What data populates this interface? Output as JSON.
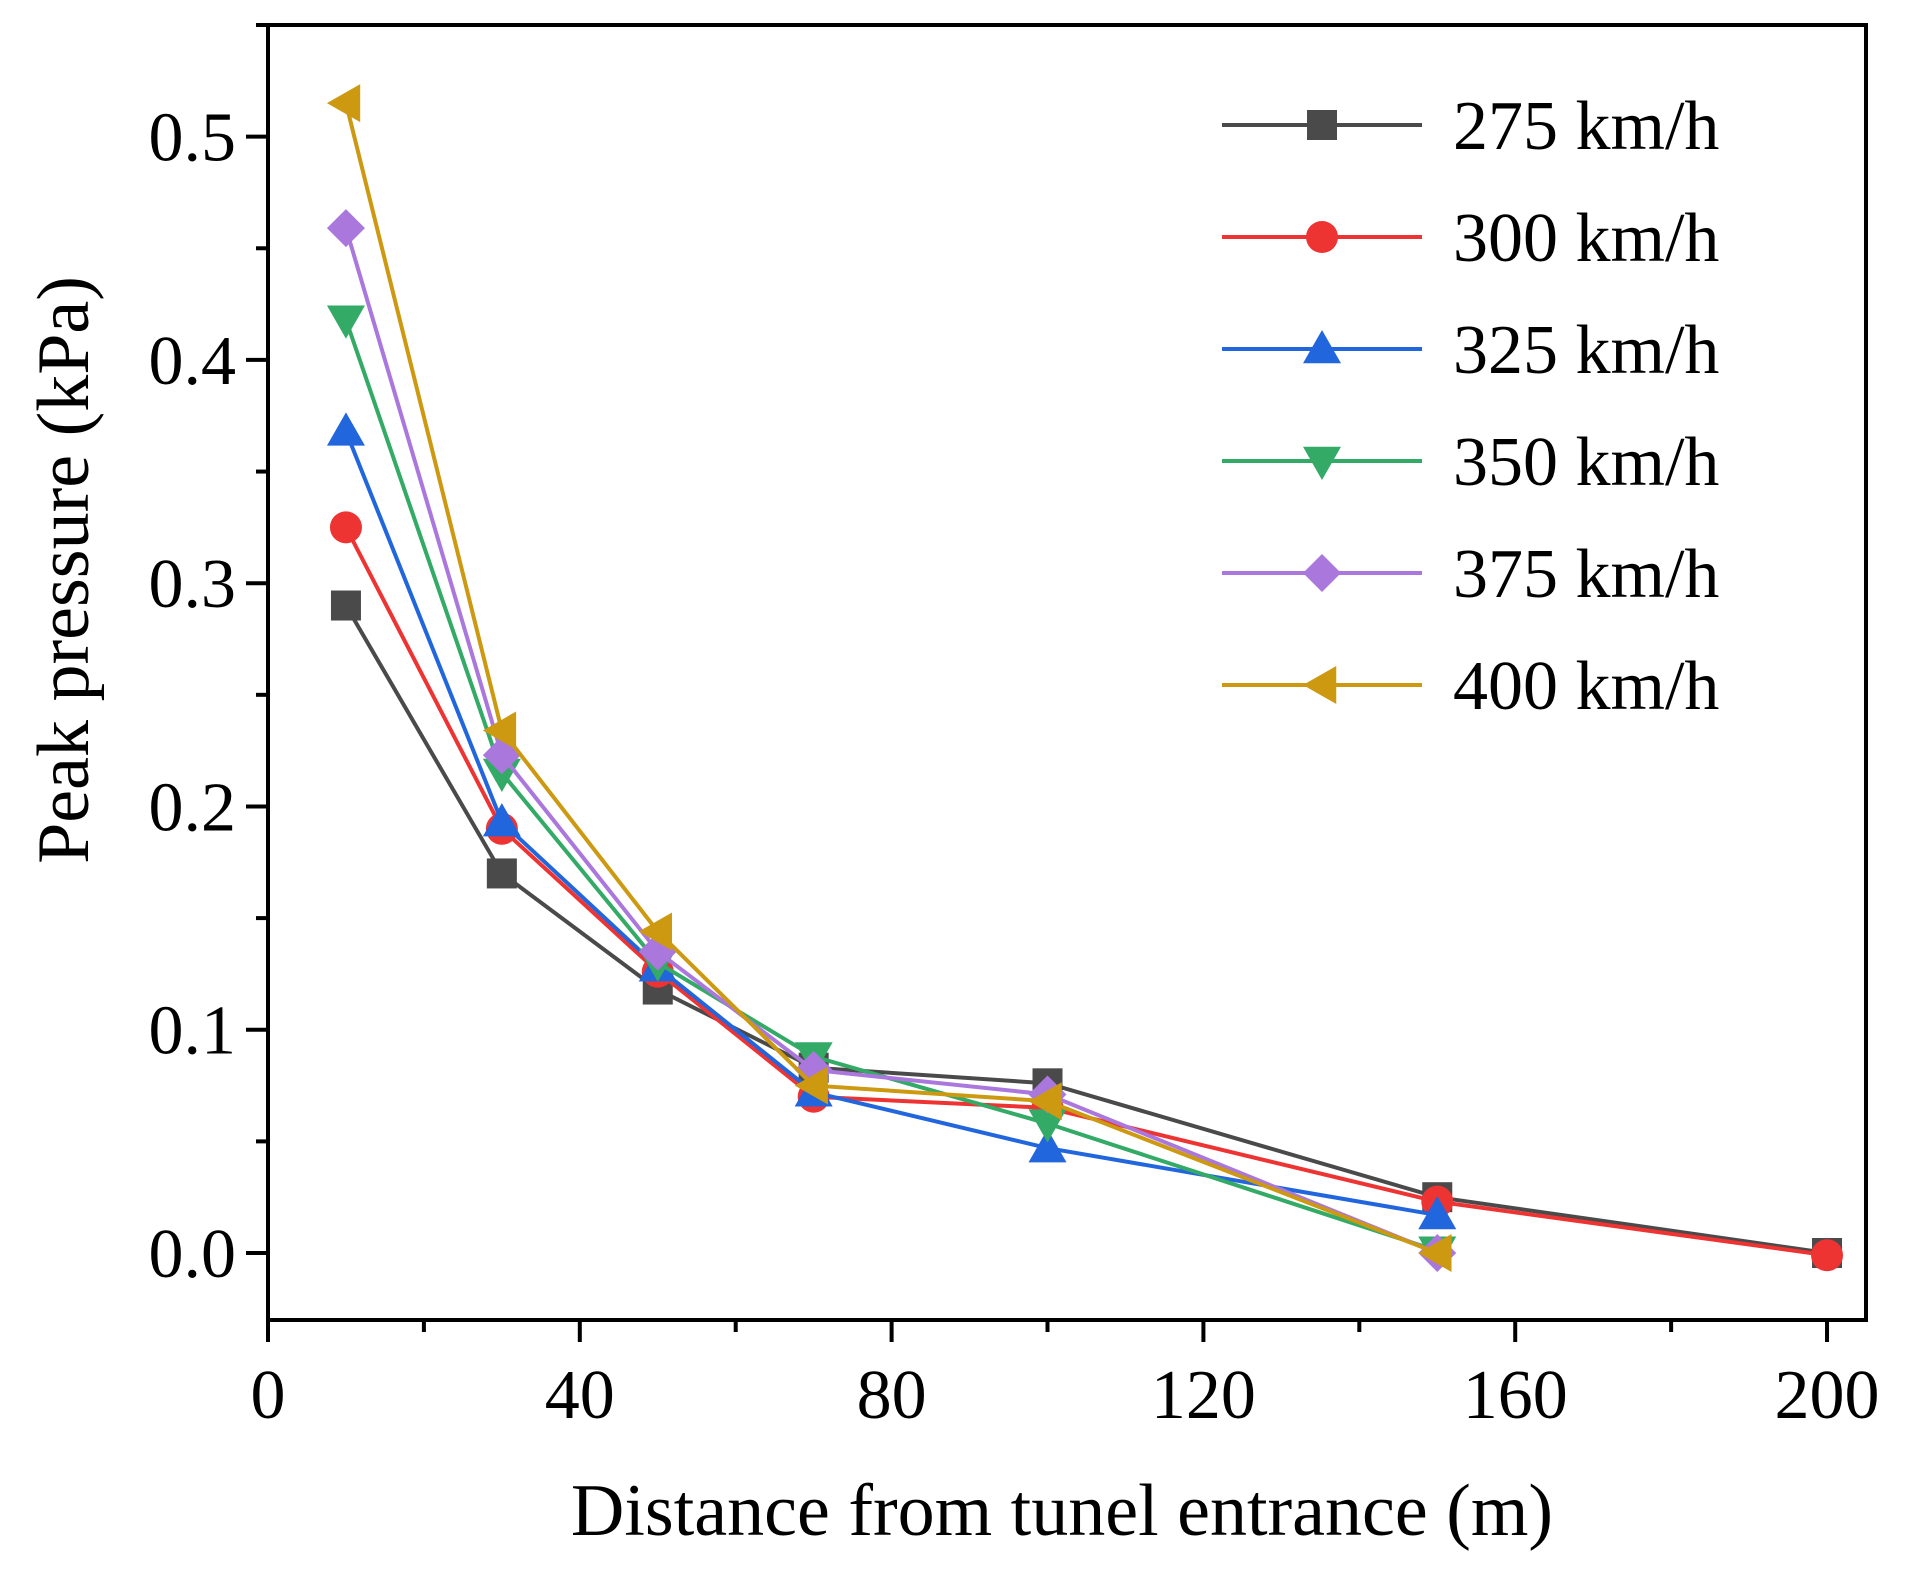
{
  "chart_data": {
    "type": "line",
    "title": "",
    "xlabel": "Distance from tunel entrance (m)",
    "ylabel": "Peak pressure (kPa)",
    "xlim": [
      0,
      205
    ],
    "ylim": [
      -0.03,
      0.55
    ],
    "xticks": [
      0,
      40,
      80,
      120,
      160,
      200
    ],
    "xtick_labels": [
      "0",
      "40",
      "80",
      "120",
      "160",
      "200"
    ],
    "yticks": [
      0.0,
      0.1,
      0.2,
      0.3,
      0.4,
      0.5
    ],
    "ytick_labels": [
      "0.0",
      "0.1",
      "0.2",
      "0.3",
      "0.4",
      "0.5"
    ],
    "legend_position": "top-right",
    "grid": false,
    "series": [
      {
        "name": "275 km/h",
        "color": "#4a4a4a",
        "marker": "square",
        "x": [
          10,
          30,
          50,
          70,
          100,
          150,
          200
        ],
        "values": [
          0.29,
          0.17,
          0.118,
          0.083,
          0.076,
          0.025,
          0.0
        ]
      },
      {
        "name": "300 km/h",
        "color": "#ee3333",
        "marker": "circle",
        "x": [
          10,
          30,
          50,
          70,
          100,
          150,
          200
        ],
        "values": [
          0.325,
          0.19,
          0.126,
          0.07,
          0.065,
          0.023,
          -0.001
        ]
      },
      {
        "name": "325 km/h",
        "color": "#2266dd",
        "marker": "triangle-up",
        "x": [
          10,
          30,
          50,
          70,
          100,
          150
        ],
        "values": [
          0.368,
          0.193,
          0.128,
          0.072,
          0.047,
          0.017
        ]
      },
      {
        "name": "350 km/h",
        "color": "#33aa66",
        "marker": "triangle-down",
        "x": [
          10,
          30,
          50,
          70,
          100,
          150
        ],
        "values": [
          0.418,
          0.215,
          0.13,
          0.088,
          0.058,
          0.001
        ]
      },
      {
        "name": "375 km/h",
        "color": "#aa77dd",
        "marker": "diamond",
        "x": [
          10,
          30,
          50,
          70,
          100,
          150
        ],
        "values": [
          0.459,
          0.223,
          0.135,
          0.082,
          0.071,
          0.0
        ]
      },
      {
        "name": "400 km/h",
        "color": "#cc9911",
        "marker": "triangle-left",
        "x": [
          10,
          30,
          50,
          70,
          100,
          150
        ],
        "values": [
          0.515,
          0.234,
          0.144,
          0.075,
          0.068,
          0.0
        ]
      }
    ]
  }
}
